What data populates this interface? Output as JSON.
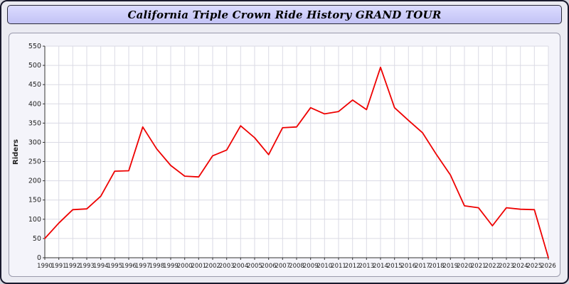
{
  "header": {
    "title": "California Triple Crown Ride History GRAND TOUR"
  },
  "chart_data": {
    "type": "line",
    "title": "California Triple Crown Ride History GRAND TOUR",
    "xlabel": "",
    "ylabel": "Riders",
    "ylim": [
      0,
      550
    ],
    "ytick_step": 50,
    "grid": true,
    "legend_position": "none",
    "line_color": "#ee0000",
    "categories": [
      1990,
      1991,
      1992,
      1993,
      1994,
      1995,
      1996,
      1997,
      1998,
      1999,
      2000,
      2001,
      2002,
      2003,
      2004,
      2005,
      2006,
      2007,
      2008,
      2009,
      2010,
      2011,
      2012,
      2013,
      2014,
      2015,
      2016,
      2017,
      2018,
      2019,
      2020,
      2021,
      2022,
      2023,
      2024,
      2025,
      2026
    ],
    "series": [
      {
        "name": "Riders",
        "color": "#ee0000",
        "values": [
          50,
          90,
          125,
          127,
          160,
          225,
          226,
          340,
          283,
          240,
          212,
          210,
          265,
          280,
          343,
          312,
          268,
          338,
          340,
          390,
          374,
          380,
          410,
          385,
          495,
          390,
          357,
          325,
          268,
          215,
          135,
          130,
          83,
          130,
          126,
          125,
          0
        ]
      }
    ]
  }
}
